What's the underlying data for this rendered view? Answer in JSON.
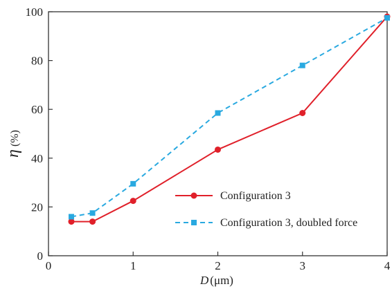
{
  "chart_data": {
    "type": "line",
    "xlabel": {
      "symbol": "D",
      "unit": "(μm)"
    },
    "ylabel": {
      "symbol": "η",
      "unit": "(%)"
    },
    "xlim": [
      0,
      4
    ],
    "ylim": [
      0,
      100
    ],
    "xticks": [
      0,
      1,
      2,
      3,
      4
    ],
    "yticks": [
      0,
      20,
      40,
      60,
      80,
      100
    ],
    "grid": false,
    "legend_position": "lower-right",
    "series": [
      {
        "name": "Configuration 3",
        "color": "#e0202a",
        "marker": "circle",
        "line_style": "solid",
        "x": [
          0.27,
          0.52,
          1,
          2,
          3,
          4
        ],
        "y": [
          14,
          14,
          22.5,
          43.5,
          58.5,
          98
        ]
      },
      {
        "name": "Configuration 3, doubled force",
        "color": "#29a9e0",
        "marker": "square",
        "line_style": "dashed",
        "x": [
          0.27,
          0.52,
          1,
          2,
          3,
          4
        ],
        "y": [
          16,
          17.5,
          29.5,
          58.5,
          78,
          97.5
        ]
      }
    ]
  }
}
